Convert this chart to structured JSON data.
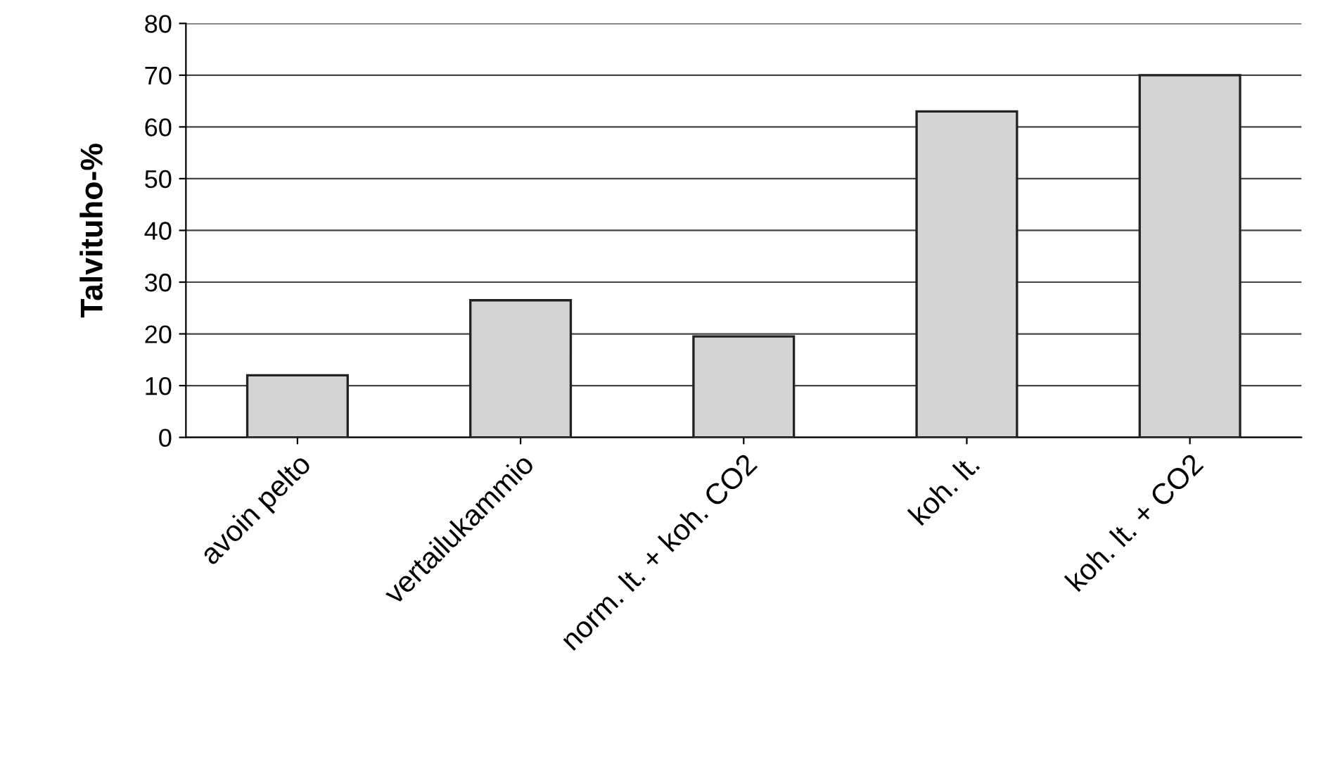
{
  "chart_data": {
    "type": "bar",
    "ylabel": "Talvituho-%",
    "categories": [
      "avoin pelto",
      "vertailukammio",
      "norm. lt. + koh. CO2",
      "koh. lt.",
      "koh. lt. + CO2"
    ],
    "values": [
      12,
      26.5,
      19.5,
      63,
      70
    ],
    "color": "#d4d4d4",
    "ylim": [
      0,
      80
    ],
    "yticks": [
      0,
      10,
      20,
      30,
      40,
      50,
      60,
      70,
      80
    ],
    "grid": "y"
  }
}
